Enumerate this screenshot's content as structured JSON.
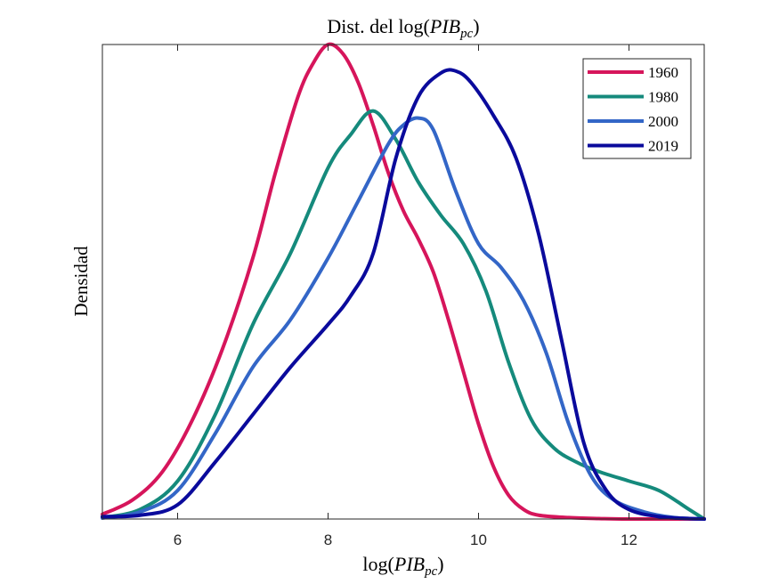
{
  "chart_data": {
    "type": "line",
    "title": "Dist. del log(PIB_pc)",
    "title_parts": {
      "prefix": "Dist. del log(",
      "var": "PIB",
      "sub": "pc",
      "suffix": ")"
    },
    "xlabel": "log(PIB_pc)",
    "xlabel_parts": {
      "prefix": "log(",
      "var": "PIB",
      "sub": "pc",
      "suffix": ")"
    },
    "ylabel": "Densidad",
    "xlim": [
      5,
      13
    ],
    "ylim": [
      0,
      1
    ],
    "xticks": [
      6,
      8,
      10,
      12
    ],
    "xtick_labels": [
      "6",
      "8",
      "10",
      "12"
    ],
    "yticks_shown": false,
    "grid": false,
    "legend_position": "top-right",
    "series": [
      {
        "name": "1960",
        "color": "#D6155B",
        "x": [
          5.0,
          5.4,
          5.8,
          6.2,
          6.6,
          7.0,
          7.3,
          7.6,
          7.8,
          8.0,
          8.2,
          8.4,
          8.6,
          8.8,
          9.0,
          9.2,
          9.4,
          9.6,
          9.8,
          10.0,
          10.2,
          10.4,
          10.6,
          10.8,
          11.2,
          11.6,
          12.0,
          13.0
        ],
        "y": [
          0.01,
          0.04,
          0.1,
          0.21,
          0.36,
          0.55,
          0.73,
          0.89,
          0.96,
          1.0,
          0.98,
          0.92,
          0.83,
          0.73,
          0.65,
          0.59,
          0.52,
          0.42,
          0.31,
          0.2,
          0.11,
          0.05,
          0.02,
          0.008,
          0.003,
          0.001,
          0.0,
          0.0
        ]
      },
      {
        "name": "1980",
        "color": "#158A7C",
        "x": [
          5.0,
          5.5,
          6.0,
          6.5,
          7.0,
          7.5,
          8.0,
          8.3,
          8.6,
          8.9,
          9.2,
          9.5,
          9.8,
          10.1,
          10.4,
          10.7,
          11.0,
          11.3,
          11.6,
          12.0,
          12.4,
          12.8,
          13.0
        ],
        "y": [
          0.003,
          0.02,
          0.08,
          0.22,
          0.41,
          0.56,
          0.74,
          0.81,
          0.86,
          0.8,
          0.71,
          0.64,
          0.58,
          0.48,
          0.33,
          0.21,
          0.15,
          0.12,
          0.1,
          0.08,
          0.06,
          0.02,
          0.0
        ]
      },
      {
        "name": "2000",
        "color": "#3366C7",
        "x": [
          5.0,
          5.5,
          6.0,
          6.5,
          7.0,
          7.5,
          8.0,
          8.4,
          8.8,
          9.0,
          9.2,
          9.4,
          9.7,
          10.0,
          10.3,
          10.6,
          10.9,
          11.2,
          11.5,
          11.8,
          12.2,
          12.6,
          13.0
        ],
        "y": [
          0.002,
          0.015,
          0.06,
          0.18,
          0.32,
          0.42,
          0.55,
          0.67,
          0.79,
          0.83,
          0.845,
          0.82,
          0.69,
          0.58,
          0.53,
          0.46,
          0.35,
          0.2,
          0.09,
          0.04,
          0.015,
          0.003,
          0.0
        ]
      },
      {
        "name": "2019",
        "color": "#0A0A9C",
        "x": [
          5.0,
          5.5,
          6.0,
          6.5,
          7.0,
          7.5,
          8.0,
          8.3,
          8.6,
          8.9,
          9.2,
          9.5,
          9.7,
          9.9,
          10.2,
          10.5,
          10.8,
          11.1,
          11.4,
          11.7,
          12.0,
          12.4,
          12.8,
          13.0
        ],
        "y": [
          0.005,
          0.008,
          0.03,
          0.12,
          0.22,
          0.32,
          0.41,
          0.47,
          0.56,
          0.76,
          0.89,
          0.94,
          0.944,
          0.92,
          0.85,
          0.76,
          0.6,
          0.38,
          0.16,
          0.06,
          0.02,
          0.005,
          0.001,
          0.0
        ]
      }
    ]
  }
}
